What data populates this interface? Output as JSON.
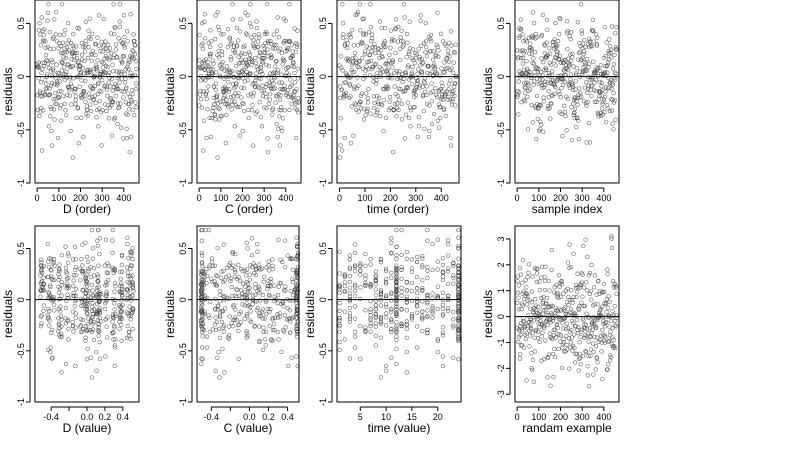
{
  "chart_data": [
    {
      "type": "scatter",
      "xlabel": "D (order)",
      "ylabel": "residuals",
      "xlim": [
        -10,
        470
      ],
      "ylim": [
        -1.0,
        0.72
      ],
      "xticks": [
        0,
        100,
        200,
        300,
        400
      ],
      "yticks": [
        -1.0,
        -0.5,
        0.0,
        0.5
      ],
      "hline": 0,
      "pattern": "order"
    },
    {
      "type": "scatter",
      "xlabel": "C (order)",
      "ylabel": "residuals",
      "xlim": [
        -10,
        470
      ],
      "ylim": [
        -1.0,
        0.72
      ],
      "xticks": [
        0,
        100,
        200,
        300,
        400
      ],
      "yticks": [
        -1.0,
        -0.5,
        0.0,
        0.5
      ],
      "hline": 0,
      "pattern": "order"
    },
    {
      "type": "scatter",
      "xlabel": "time (order)",
      "ylabel": "residuals",
      "xlim": [
        -10,
        470
      ],
      "ylim": [
        -1.0,
        0.72
      ],
      "xticks": [
        0,
        100,
        200,
        300,
        400
      ],
      "yticks": [
        -1.0,
        -0.5,
        0.0,
        0.5
      ],
      "hline": 0,
      "pattern": "order"
    },
    {
      "type": "scatter",
      "xlabel": "sample index",
      "ylabel": "residuals",
      "xlim": [
        -10,
        470
      ],
      "ylim": [
        -1.0,
        0.72
      ],
      "xticks": [
        0,
        100,
        200,
        300,
        400
      ],
      "yticks": [
        -1.0,
        -0.5,
        0.0,
        0.5
      ],
      "hline": 0,
      "pattern": "sample"
    },
    {
      "type": "scatter",
      "xlabel": "D (value)",
      "ylabel": "residuals",
      "xlim": [
        -0.58,
        0.58
      ],
      "ylim": [
        -1.0,
        0.72
      ],
      "xticks": [
        -0.4,
        -0.2,
        0.0,
        0.2,
        0.4
      ],
      "xtick_labels": [
        "-0.4",
        "",
        "0.0",
        "0.2",
        "0.4"
      ],
      "yticks": [
        -1.0,
        -0.5,
        0.0,
        0.5
      ],
      "hline": 0,
      "pattern": "dvalue"
    },
    {
      "type": "scatter",
      "xlabel": "C (value)",
      "ylabel": "residuals",
      "xlim": [
        -0.55,
        0.52
      ],
      "ylim": [
        -1.0,
        0.72
      ],
      "xticks": [
        -0.4,
        -0.2,
        0.0,
        0.2,
        0.4
      ],
      "xtick_labels": [
        "-0.4",
        "",
        "0.0",
        "0.2",
        "0.4"
      ],
      "yticks": [
        -1.0,
        -0.5,
        0.0,
        0.5
      ],
      "hline": 0,
      "pattern": "cvalue"
    },
    {
      "type": "scatter",
      "xlabel": "time (value)",
      "ylabel": "residuals",
      "xlim": [
        0.5,
        24.5
      ],
      "ylim": [
        -1.0,
        0.72
      ],
      "xticks": [
        5,
        10,
        15,
        20
      ],
      "yticks": [
        -1.0,
        -0.5,
        0.0,
        0.5
      ],
      "hline": 0,
      "pattern": "timevalue"
    },
    {
      "type": "scatter",
      "xlabel": "randam example",
      "ylabel": "residuals",
      "xlim": [
        -10,
        470
      ],
      "ylim": [
        -3.3,
        3.5
      ],
      "xticks": [
        0,
        100,
        200,
        300,
        400
      ],
      "yticks": [
        -3,
        -2,
        -1,
        0,
        1,
        2,
        3
      ],
      "hline": 0,
      "pattern": "random"
    }
  ]
}
